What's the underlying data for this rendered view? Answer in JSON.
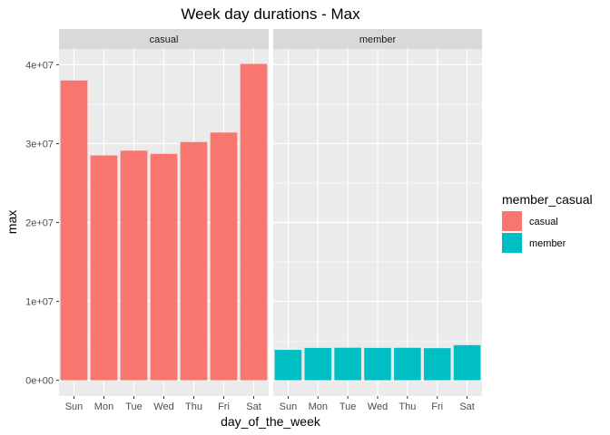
{
  "chart_data": {
    "type": "bar",
    "title": "Week day durations - Max",
    "xlabel": "day_of_the_week",
    "ylabel": "max",
    "categories": [
      "Sun",
      "Mon",
      "Tue",
      "Wed",
      "Thu",
      "Fri",
      "Sat"
    ],
    "ylim": [
      0,
      40000000
    ],
    "y_ticks": [
      0,
      10000000,
      20000000,
      30000000,
      40000000
    ],
    "y_tick_labels": [
      "0e+00",
      "1e+07",
      "2e+07",
      "3e+07",
      "4e+07"
    ],
    "facets": [
      "casual",
      "member"
    ],
    "legend": {
      "title": "member_casual",
      "position": "right",
      "entries": [
        "casual",
        "member"
      ]
    },
    "grid": true,
    "series": [
      {
        "name": "casual",
        "color": "#F8766D",
        "values": [
          38000000,
          28500000,
          29100000,
          28700000,
          30200000,
          31400000,
          40100000
        ]
      },
      {
        "name": "member",
        "color": "#00BFC4",
        "values": [
          3850000,
          4100000,
          4120000,
          4100000,
          4110000,
          4070000,
          4450000
        ]
      }
    ]
  }
}
